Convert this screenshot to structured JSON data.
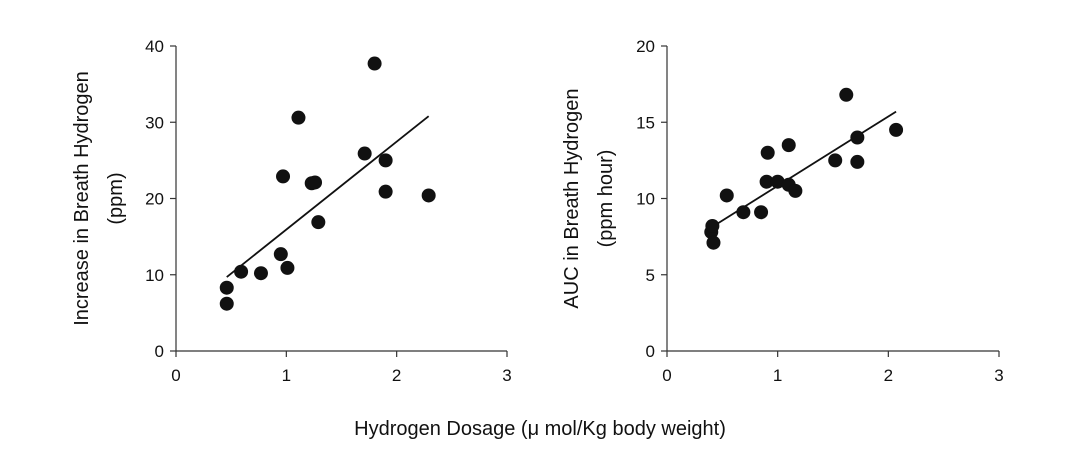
{
  "xlabel": "Hydrogen Dosage (μ mol/Kg body weight)",
  "colors": {
    "marker": "#111111",
    "line": "#111111",
    "axis": "#333333"
  },
  "chart_data": [
    {
      "type": "scatter",
      "title": "",
      "ylabel_lines": [
        "Increase in Breath Hydrogen",
        "(ppm)"
      ],
      "xlim": [
        0,
        3
      ],
      "ylim": [
        0,
        40
      ],
      "xticks": [
        0,
        1,
        2,
        3
      ],
      "xtick_labels": [
        "0",
        "1",
        "2",
        "3"
      ],
      "yticks": [
        0,
        10,
        20,
        30,
        40
      ],
      "ytick_labels": [
        "0",
        "10",
        "20",
        "30",
        "40"
      ],
      "points": [
        {
          "x": 0.46,
          "y": 8.3
        },
        {
          "x": 0.46,
          "y": 6.2
        },
        {
          "x": 0.59,
          "y": 10.4
        },
        {
          "x": 0.77,
          "y": 10.2
        },
        {
          "x": 0.95,
          "y": 12.7
        },
        {
          "x": 0.97,
          "y": 22.9
        },
        {
          "x": 1.01,
          "y": 10.9
        },
        {
          "x": 1.11,
          "y": 30.6
        },
        {
          "x": 1.23,
          "y": 22.0
        },
        {
          "x": 1.26,
          "y": 22.1
        },
        {
          "x": 1.29,
          "y": 16.9
        },
        {
          "x": 1.71,
          "y": 25.9
        },
        {
          "x": 1.8,
          "y": 37.7
        },
        {
          "x": 1.9,
          "y": 25.0
        },
        {
          "x": 1.9,
          "y": 20.9
        },
        {
          "x": 2.29,
          "y": 20.4
        }
      ],
      "trendline": [
        {
          "x": 0.46,
          "y": 9.7
        },
        {
          "x": 2.29,
          "y": 30.8
        }
      ]
    },
    {
      "type": "scatter",
      "title": "",
      "ylabel_lines": [
        "AUC in Breath Hydrogen",
        "(ppm hour)"
      ],
      "xlim": [
        0,
        3
      ],
      "ylim": [
        0,
        20
      ],
      "xticks": [
        0,
        1,
        2,
        3
      ],
      "xtick_labels": [
        "0",
        "1",
        "2",
        "3"
      ],
      "yticks": [
        0,
        5,
        10,
        15,
        20
      ],
      "ytick_labels": [
        "0",
        "5",
        "10",
        "15",
        "20"
      ],
      "points": [
        {
          "x": 0.4,
          "y": 7.8
        },
        {
          "x": 0.41,
          "y": 8.2
        },
        {
          "x": 0.42,
          "y": 7.1
        },
        {
          "x": 0.54,
          "y": 10.2
        },
        {
          "x": 0.69,
          "y": 9.1
        },
        {
          "x": 0.85,
          "y": 9.1
        },
        {
          "x": 0.9,
          "y": 11.1
        },
        {
          "x": 0.91,
          "y": 13.0
        },
        {
          "x": 1.0,
          "y": 11.1
        },
        {
          "x": 1.1,
          "y": 13.5
        },
        {
          "x": 1.1,
          "y": 10.9
        },
        {
          "x": 1.16,
          "y": 10.5
        },
        {
          "x": 1.52,
          "y": 12.5
        },
        {
          "x": 1.62,
          "y": 16.8
        },
        {
          "x": 1.72,
          "y": 12.4
        },
        {
          "x": 1.72,
          "y": 14.0
        },
        {
          "x": 2.07,
          "y": 14.5
        }
      ],
      "trendline": [
        {
          "x": 0.4,
          "y": 8.1
        },
        {
          "x": 2.07,
          "y": 15.7
        }
      ]
    }
  ]
}
